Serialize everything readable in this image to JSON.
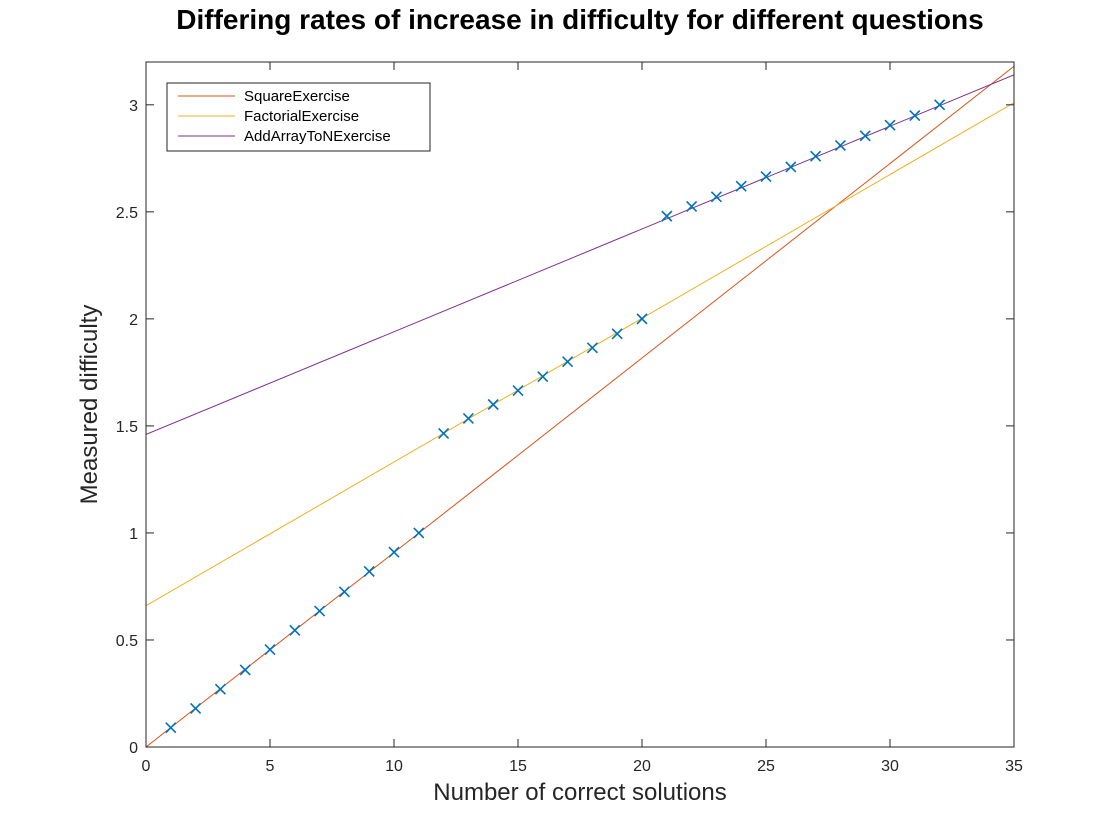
{
  "chart_data": {
    "type": "line",
    "title": "Differing rates of increase in difficulty for different questions",
    "xlabel": "Number of correct solutions",
    "ylabel": "Measured difficulty",
    "xlim": [
      0,
      35
    ],
    "ylim": [
      0,
      3.2
    ],
    "xticks": [
      0,
      5,
      10,
      15,
      20,
      25,
      30,
      35
    ],
    "yticks": [
      0,
      0.5,
      1,
      1.5,
      2,
      2.5,
      3
    ],
    "ytick_labels": [
      "0",
      "0.5",
      "1",
      "1.5",
      "2",
      "2.5",
      "3"
    ],
    "grid": false,
    "legend_position": "top-left",
    "series": [
      {
        "name": "SquareExercise",
        "color": "#D95319",
        "line": {
          "x": [
            0,
            35
          ],
          "y": [
            0,
            3.18
          ]
        }
      },
      {
        "name": "FactorialExercise",
        "color": "#EDB120",
        "line": {
          "x": [
            0,
            35
          ],
          "y": [
            0.66,
            3.01
          ]
        }
      },
      {
        "name": "AddArrayToNExercise",
        "color": "#7E2F8E",
        "line": {
          "x": [
            0,
            35
          ],
          "y": [
            1.46,
            3.14
          ]
        }
      }
    ],
    "markers": {
      "color": "#0072BD",
      "symbol": "x",
      "x": [
        1,
        2,
        3,
        4,
        5,
        6,
        7,
        8,
        9,
        10,
        11,
        12,
        13,
        14,
        15,
        16,
        17,
        18,
        19,
        20,
        21,
        22,
        23,
        24,
        25,
        26,
        27,
        28,
        29,
        30,
        31,
        32
      ],
      "y": [
        0.09,
        0.18,
        0.27,
        0.36,
        0.455,
        0.545,
        0.635,
        0.725,
        0.82,
        0.91,
        1.0,
        1.465,
        1.535,
        1.6,
        1.665,
        1.73,
        1.8,
        1.865,
        1.93,
        2.0,
        2.48,
        2.525,
        2.57,
        2.62,
        2.665,
        2.71,
        2.76,
        2.81,
        2.855,
        2.905,
        2.95,
        3.0
      ]
    }
  }
}
